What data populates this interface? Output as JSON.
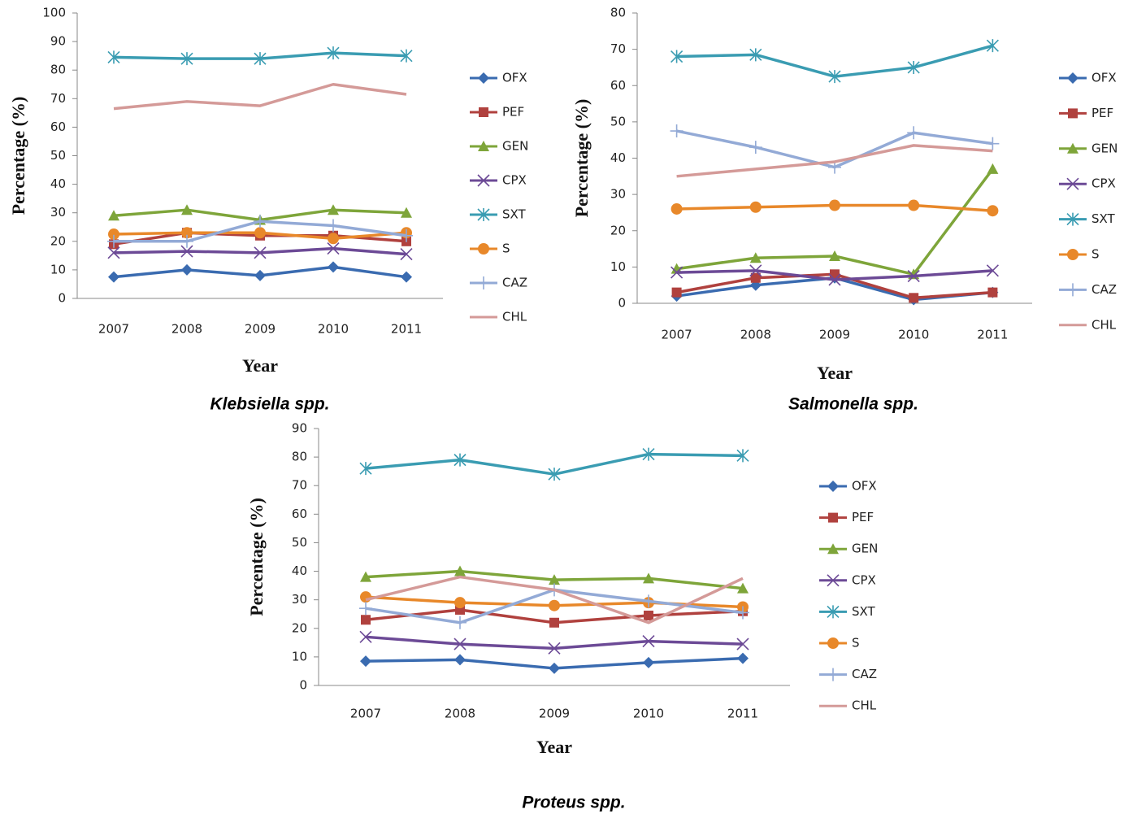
{
  "chart_data": [
    {
      "type": "line",
      "title": "Klebsiella spp.",
      "xlabel": "Year",
      "ylabel": "Percentage (%)",
      "categories": [
        "2007",
        "2008",
        "2009",
        "2010",
        "2011"
      ],
      "ylim": [
        0,
        100
      ],
      "yticks": [
        0,
        10,
        20,
        30,
        40,
        50,
        60,
        70,
        80,
        90,
        100
      ],
      "grid": false,
      "legend": "right",
      "series": [
        {
          "name": "OFX",
          "color": "#3a6bb0",
          "marker": "diamond",
          "values": [
            7.5,
            10,
            8,
            11,
            7.5
          ]
        },
        {
          "name": "PEF",
          "color": "#b0413e",
          "marker": "square",
          "values": [
            19,
            23,
            22,
            22,
            20
          ]
        },
        {
          "name": "GEN",
          "color": "#7ea53a",
          "marker": "triangle",
          "values": [
            29,
            31,
            27.5,
            31,
            30
          ]
        },
        {
          "name": "CPX",
          "color": "#6c4a96",
          "marker": "x",
          "values": [
            16,
            16.5,
            16,
            17.5,
            15.5
          ]
        },
        {
          "name": "SXT",
          "color": "#3a9cb2",
          "marker": "star",
          "values": [
            84.5,
            84,
            84,
            86,
            85
          ]
        },
        {
          "name": "S",
          "color": "#e8882a",
          "marker": "circle",
          "values": [
            22.5,
            23,
            23,
            21,
            23
          ]
        },
        {
          "name": "CAZ",
          "color": "#93aad6",
          "marker": "plus",
          "values": [
            20,
            20,
            27,
            25.5,
            22
          ]
        },
        {
          "name": "CHL",
          "color": "#d49a98",
          "marker": "none",
          "values": [
            66.5,
            69,
            67.5,
            75,
            71.5
          ]
        }
      ]
    },
    {
      "type": "line",
      "title": "Salmonella spp.",
      "xlabel": "Year",
      "ylabel": "Percentage (%)",
      "categories": [
        "2007",
        "2008",
        "2009",
        "2010",
        "2011"
      ],
      "ylim": [
        0,
        80
      ],
      "yticks": [
        0,
        10,
        20,
        30,
        40,
        50,
        60,
        70,
        80
      ],
      "grid": false,
      "legend": "right",
      "series": [
        {
          "name": "OFX",
          "color": "#3a6bb0",
          "marker": "diamond",
          "values": [
            2,
            5,
            7,
            1,
            3
          ]
        },
        {
          "name": "PEF",
          "color": "#b0413e",
          "marker": "square",
          "values": [
            3,
            7,
            8,
            1.5,
            3
          ]
        },
        {
          "name": "GEN",
          "color": "#7ea53a",
          "marker": "triangle",
          "values": [
            9.5,
            12.5,
            13,
            8,
            37
          ]
        },
        {
          "name": "CPX",
          "color": "#6c4a96",
          "marker": "x",
          "values": [
            8.5,
            9,
            6.5,
            7.5,
            9
          ]
        },
        {
          "name": "SXT",
          "color": "#3a9cb2",
          "marker": "star",
          "values": [
            68,
            68.5,
            62.5,
            65,
            71
          ]
        },
        {
          "name": "S",
          "color": "#e8882a",
          "marker": "circle",
          "values": [
            26,
            26.5,
            27,
            27,
            25.5
          ]
        },
        {
          "name": "CAZ",
          "color": "#93aad6",
          "marker": "plus",
          "values": [
            47.5,
            43,
            37.5,
            47,
            44
          ]
        },
        {
          "name": "CHL",
          "color": "#d49a98",
          "marker": "none",
          "values": [
            35,
            37,
            39,
            43.5,
            42
          ]
        }
      ]
    },
    {
      "type": "line",
      "title": "Proteus spp.",
      "xlabel": "Year",
      "ylabel": "Percentage (%)",
      "categories": [
        "2007",
        "2008",
        "2009",
        "2010",
        "2011"
      ],
      "ylim": [
        0,
        90
      ],
      "yticks": [
        0,
        10,
        20,
        30,
        40,
        50,
        60,
        70,
        80,
        90
      ],
      "grid": false,
      "legend": "right",
      "series": [
        {
          "name": "OFX",
          "color": "#3a6bb0",
          "marker": "diamond",
          "values": [
            8.5,
            9,
            6,
            8,
            9.5
          ]
        },
        {
          "name": "PEF",
          "color": "#b0413e",
          "marker": "square",
          "values": [
            23,
            26.5,
            22,
            24.5,
            26
          ]
        },
        {
          "name": "GEN",
          "color": "#7ea53a",
          "marker": "triangle",
          "values": [
            38,
            40,
            37,
            37.5,
            34
          ]
        },
        {
          "name": "CPX",
          "color": "#6c4a96",
          "marker": "x",
          "values": [
            17,
            14.5,
            13,
            15.5,
            14.5
          ]
        },
        {
          "name": "SXT",
          "color": "#3a9cb2",
          "marker": "star",
          "values": [
            76,
            79,
            74,
            81,
            80.5
          ]
        },
        {
          "name": "S",
          "color": "#e8882a",
          "marker": "circle",
          "values": [
            31,
            29,
            28,
            29,
            27.5
          ]
        },
        {
          "name": "CAZ",
          "color": "#93aad6",
          "marker": "plus",
          "values": [
            27,
            22,
            33.5,
            29.5,
            25.5
          ]
        },
        {
          "name": "CHL",
          "color": "#d49a98",
          "marker": "none",
          "values": [
            30,
            38,
            33.5,
            22,
            37.5
          ]
        }
      ]
    }
  ]
}
